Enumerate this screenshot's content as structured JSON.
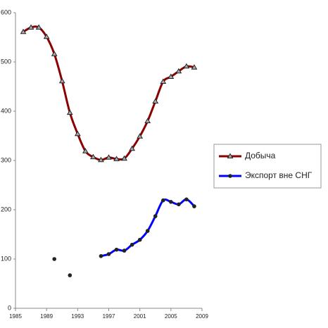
{
  "chart_data": {
    "type": "line",
    "x": [
      1986,
      1987,
      1988,
      1989,
      1990,
      1991,
      1992,
      1993,
      1994,
      1995,
      1996,
      1997,
      1998,
      1999,
      2000,
      2001,
      2002,
      2003,
      2004,
      2005,
      2006,
      2007,
      2008
    ],
    "series": [
      {
        "name": "Добыча",
        "color": "#8b0000",
        "marker": "triangle",
        "values": [
          561,
          570,
          570,
          551,
          516,
          461,
          397,
          354,
          319,
          307,
          301,
          306,
          303,
          304,
          324,
          349,
          380,
          420,
          460,
          470,
          481,
          491,
          489
        ]
      },
      {
        "name": "Экспорт вне СНГ",
        "color": "#0000ff",
        "marker": "circle",
        "values": [
          null,
          null,
          null,
          null,
          100,
          null,
          67,
          null,
          null,
          null,
          106,
          110,
          119,
          117,
          129,
          139,
          157,
          187,
          219,
          216,
          211,
          221,
          207
        ]
      }
    ],
    "xlim": [
      1985,
      2009
    ],
    "xticks": [
      1985,
      1989,
      1993,
      1997,
      2001,
      2005,
      2009
    ],
    "ylim": [
      0,
      600
    ],
    "yticks": [
      0,
      100,
      200,
      300,
      400,
      500,
      600
    ],
    "legend": "right",
    "smooth": true
  }
}
